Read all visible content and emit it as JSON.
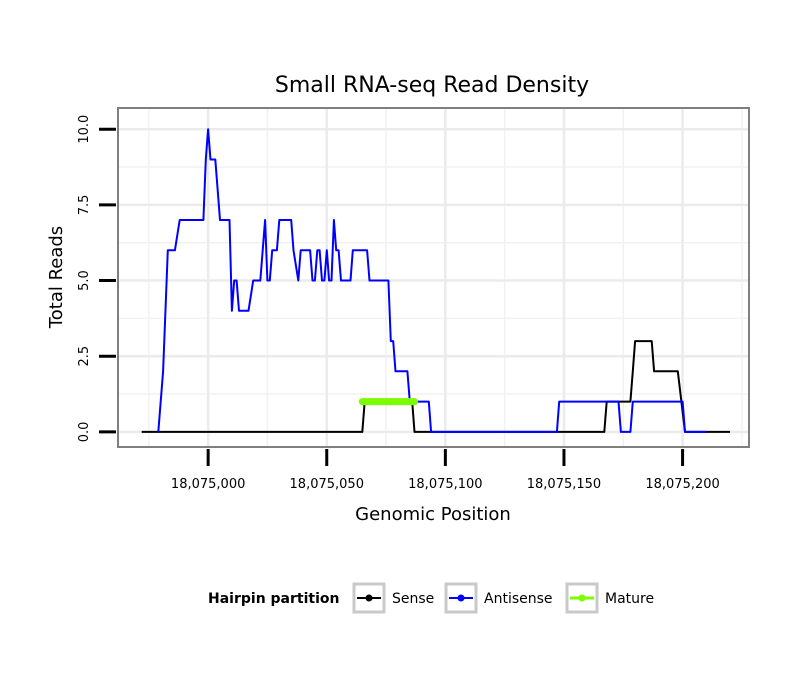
{
  "chart_data": {
    "type": "line",
    "title": "Small RNA-seq Read Density",
    "xlabel": "Genomic Position",
    "ylabel": "Total Reads",
    "xlim": [
      18074962,
      18075228
    ],
    "ylim": [
      -0.5,
      10.7
    ],
    "x_ticks": [
      18075000,
      18075050,
      18075100,
      18075150,
      18075200
    ],
    "x_tick_labels": [
      "18,075,000",
      "18,075,050",
      "18,075,100",
      "18,075,150",
      "18,075,200"
    ],
    "y_ticks": [
      0,
      2.5,
      5,
      7.5,
      10
    ],
    "y_tick_labels": [
      "0.0",
      "2.5",
      "5.0",
      "7.5",
      "10.0"
    ],
    "grid": true,
    "legend": {
      "title": "Hairpin partition",
      "placement": "bottom",
      "entries": [
        "Sense",
        "Antisense",
        "Mature"
      ]
    },
    "series": [
      {
        "name": "Sense",
        "color": "#000000",
        "points": [
          [
            18074972,
            0
          ],
          [
            18075065,
            0
          ],
          [
            18075066,
            1
          ],
          [
            18075086,
            1
          ],
          [
            18075087,
            0
          ],
          [
            18075167,
            0
          ],
          [
            18075168,
            1
          ],
          [
            18075178,
            1
          ],
          [
            18075179,
            2
          ],
          [
            18075180,
            3
          ],
          [
            18075187,
            3
          ],
          [
            18075188,
            2
          ],
          [
            18075198,
            2
          ],
          [
            18075201,
            0
          ],
          [
            18075220,
            0
          ]
        ]
      },
      {
        "name": "Antisense",
        "color": "#0000ff",
        "points": [
          [
            18074979,
            0
          ],
          [
            18074981,
            2
          ],
          [
            18074983,
            6
          ],
          [
            18074986,
            6
          ],
          [
            18074988,
            7
          ],
          [
            18074998,
            7
          ],
          [
            18074999,
            9
          ],
          [
            18075000,
            10
          ],
          [
            18075001,
            9
          ],
          [
            18075003,
            9
          ],
          [
            18075005,
            7
          ],
          [
            18075009,
            7
          ],
          [
            18075010,
            4
          ],
          [
            18075011,
            5
          ],
          [
            18075012,
            5
          ],
          [
            18075013,
            4
          ],
          [
            18075017,
            4
          ],
          [
            18075019,
            5
          ],
          [
            18075022,
            5
          ],
          [
            18075024,
            7
          ],
          [
            18075025,
            5
          ],
          [
            18075026,
            5
          ],
          [
            18075027,
            6
          ],
          [
            18075029,
            6
          ],
          [
            18075030,
            7
          ],
          [
            18075035,
            7
          ],
          [
            18075036,
            6
          ],
          [
            18075038,
            5
          ],
          [
            18075039,
            6
          ],
          [
            18075043,
            6
          ],
          [
            18075044,
            5
          ],
          [
            18075045,
            5
          ],
          [
            18075046,
            6
          ],
          [
            18075047,
            6
          ],
          [
            18075048,
            5
          ],
          [
            18075049,
            5
          ],
          [
            18075050,
            6
          ],
          [
            18075051,
            5
          ],
          [
            18075052,
            5
          ],
          [
            18075053,
            7
          ],
          [
            18075054,
            6
          ],
          [
            18075055,
            6
          ],
          [
            18075056,
            5
          ],
          [
            18075060,
            5
          ],
          [
            18075061,
            6
          ],
          [
            18075067,
            6
          ],
          [
            18075068,
            5
          ],
          [
            18075076,
            5
          ],
          [
            18075077,
            3
          ],
          [
            18075078,
            3
          ],
          [
            18075079,
            2
          ],
          [
            18075084,
            2
          ],
          [
            18075085,
            1
          ],
          [
            18075093,
            1
          ],
          [
            18075094,
            0
          ],
          [
            18075147,
            0
          ],
          [
            18075148,
            1
          ],
          [
            18075170,
            1
          ],
          [
            18075171,
            1
          ],
          [
            18075173,
            1
          ],
          [
            18075174,
            0
          ],
          [
            18075178,
            0
          ],
          [
            18075179,
            1
          ],
          [
            18075180,
            1
          ],
          [
            18075186,
            1
          ],
          [
            18075200,
            1
          ],
          [
            18075201,
            0
          ],
          [
            18075210,
            0
          ]
        ]
      },
      {
        "name": "Mature",
        "color": "#7cfc00",
        "points": [
          [
            18075065,
            1
          ],
          [
            18075087,
            1
          ]
        ]
      }
    ]
  }
}
